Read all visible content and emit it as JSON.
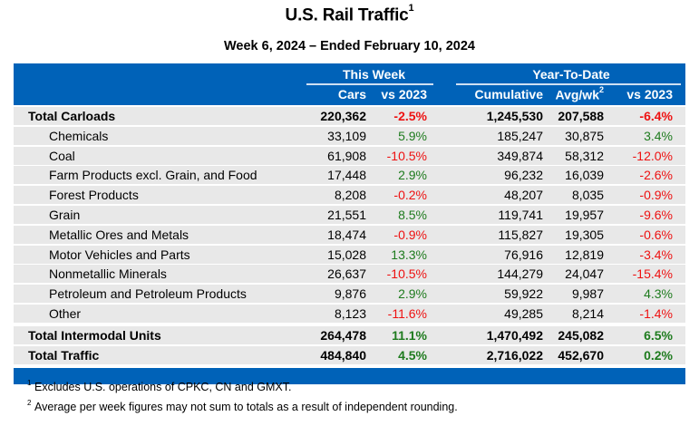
{
  "header": {
    "title": "U.S. Rail Traffic",
    "title_footnote": "1",
    "subtitle": "Week 6, 2024 – Ended February 10, 2024"
  },
  "table": {
    "groups": {
      "this_week": "This Week",
      "ytd": "Year-To-Date"
    },
    "columns": {
      "cars": "Cars",
      "tw_vs": "vs 2023",
      "cumulative": "Cumulative",
      "avgwk": "Avg/wk",
      "avgwk_footnote": "2",
      "ytd_vs": "vs 2023"
    },
    "rows": [
      {
        "label": "Total Carloads",
        "cars": "220,362",
        "tw_vs": "-2.5%",
        "cumulative": "1,245,530",
        "avgwk": "207,588",
        "ytd_vs": "-6.4%"
      },
      {
        "label": "Chemicals",
        "cars": "33,109",
        "tw_vs": "5.9%",
        "cumulative": "185,247",
        "avgwk": "30,875",
        "ytd_vs": "3.4%"
      },
      {
        "label": "Coal",
        "cars": "61,908",
        "tw_vs": "-10.5%",
        "cumulative": "349,874",
        "avgwk": "58,312",
        "ytd_vs": "-12.0%"
      },
      {
        "label": "Farm Products excl. Grain, and Food",
        "cars": "17,448",
        "tw_vs": "2.9%",
        "cumulative": "96,232",
        "avgwk": "16,039",
        "ytd_vs": "-2.6%"
      },
      {
        "label": "Forest Products",
        "cars": "8,208",
        "tw_vs": "-0.2%",
        "cumulative": "48,207",
        "avgwk": "8,035",
        "ytd_vs": "-0.9%"
      },
      {
        "label": "Grain",
        "cars": "21,551",
        "tw_vs": "8.5%",
        "cumulative": "119,741",
        "avgwk": "19,957",
        "ytd_vs": "-9.6%"
      },
      {
        "label": "Metallic Ores and Metals",
        "cars": "18,474",
        "tw_vs": "-0.9%",
        "cumulative": "115,827",
        "avgwk": "19,305",
        "ytd_vs": "-0.6%"
      },
      {
        "label": "Motor Vehicles and Parts",
        "cars": "15,028",
        "tw_vs": "13.3%",
        "cumulative": "76,916",
        "avgwk": "12,819",
        "ytd_vs": "-3.4%"
      },
      {
        "label": "Nonmetallic Minerals",
        "cars": "26,637",
        "tw_vs": "-10.5%",
        "cumulative": "144,279",
        "avgwk": "24,047",
        "ytd_vs": "-15.4%"
      },
      {
        "label": "Petroleum and Petroleum Products",
        "cars": "9,876",
        "tw_vs": "2.9%",
        "cumulative": "59,922",
        "avgwk": "9,987",
        "ytd_vs": "4.3%"
      },
      {
        "label": "Other",
        "cars": "8,123",
        "tw_vs": "-11.6%",
        "cumulative": "49,285",
        "avgwk": "8,214",
        "ytd_vs": "-1.4%"
      },
      {
        "label": "Total Intermodal Units",
        "cars": "264,478",
        "tw_vs": "11.1%",
        "cumulative": "1,470,492",
        "avgwk": "245,082",
        "ytd_vs": "6.5%"
      },
      {
        "label": "Total Traffic",
        "cars": "484,840",
        "tw_vs": "4.5%",
        "cumulative": "2,716,022",
        "avgwk": "452,670",
        "ytd_vs": "0.2%"
      }
    ]
  },
  "footnotes": [
    {
      "mark": "1",
      "text": "Excludes U.S. operations of CPKC, CN and GMXT."
    },
    {
      "mark": "2",
      "text": "Average per week figures may not sum to totals as a result of independent rounding."
    }
  ],
  "colors": {
    "header_blue": "#0062b8",
    "row_gray": "#e8e8e8",
    "positive": "#1e7b1e",
    "negative": "#ee1111"
  }
}
